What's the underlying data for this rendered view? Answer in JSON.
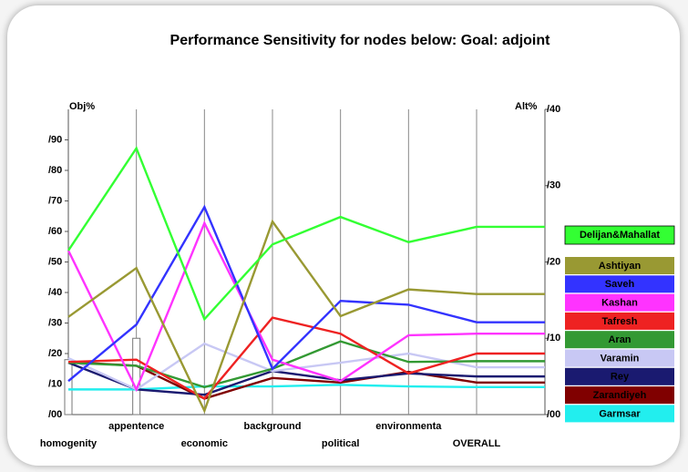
{
  "chart_data": {
    "type": "line",
    "title": "Performance Sensitivity for nodes below: Goal: adjoint",
    "ylabel": "Obj%",
    "y2label": "Alt%",
    "categories": [
      "homogenity",
      "appentence",
      "economic",
      "background",
      "political",
      "environmenta",
      "OVERALL"
    ],
    "ylim": [
      0,
      100
    ],
    "yticks": [
      {
        "value": 0,
        "label": "/00"
      },
      {
        "value": 10,
        "label": "/10"
      },
      {
        "value": 20,
        "label": "/20"
      },
      {
        "value": 30,
        "label": "/30"
      },
      {
        "value": 40,
        "label": "/40"
      },
      {
        "value": 50,
        "label": "/50"
      },
      {
        "value": 60,
        "label": "/60"
      },
      {
        "value": 70,
        "label": "/70"
      },
      {
        "value": 80,
        "label": "/80"
      },
      {
        "value": 90,
        "label": "/90"
      }
    ],
    "y2lim": [
      0,
      40
    ],
    "y2ticks": [
      {
        "value": 0,
        "label": "/00"
      },
      {
        "value": 10,
        "label": "/10"
      },
      {
        "value": 20,
        "label": "/20"
      },
      {
        "value": 30,
        "label": "/30"
      },
      {
        "value": 40,
        "label": "/40"
      }
    ],
    "bar_values": [
      18,
      25,
      null,
      null,
      null,
      null,
      null
    ],
    "series": [
      {
        "name": "Delijan&Mahallat",
        "color": "#33ff33",
        "axis": "y2",
        "values": [
          21.5,
          34.9,
          12.5,
          22.3,
          25.9,
          22.6,
          24.6
        ]
      },
      {
        "name": "Ashtiyan",
        "color": "#999933",
        "axis": "y2",
        "values": [
          12.8,
          19.2,
          0.5,
          25.3,
          12.9,
          16.4,
          15.8
        ]
      },
      {
        "name": "Saveh",
        "color": "#3333ff",
        "axis": "y2",
        "values": [
          4.4,
          11.8,
          27.2,
          6.0,
          14.9,
          14.4,
          12.1
        ]
      },
      {
        "name": "Kashan",
        "color": "#ff33ff",
        "axis": "y2",
        "values": [
          21.5,
          3.3,
          25.1,
          7.2,
          4.4,
          10.4,
          10.6
        ]
      },
      {
        "name": "Tafresh",
        "color": "#ee2222",
        "axis": "y2",
        "values": [
          6.9,
          7.2,
          2.1,
          12.7,
          10.6,
          5.4,
          8.0
        ]
      },
      {
        "name": "Aran",
        "color": "#339933",
        "axis": "y2",
        "values": [
          6.8,
          6.4,
          3.6,
          6.0,
          9.6,
          6.9,
          7.0
        ]
      },
      {
        "name": "Varamin",
        "color": "#c8c8f4",
        "axis": "y2",
        "values": [
          7.4,
          3.3,
          9.3,
          5.7,
          6.8,
          8.0,
          6.2
        ]
      },
      {
        "name": "Rey",
        "color": "#1a1a70",
        "axis": "y2",
        "values": [
          6.8,
          3.3,
          2.6,
          5.7,
          4.5,
          5.4,
          5.0
        ]
      },
      {
        "name": "Zarandiyeh",
        "color": "#800000",
        "axis": "y2",
        "values": [
          6.9,
          6.4,
          2.1,
          4.8,
          4.2,
          5.6,
          4.2
        ]
      },
      {
        "name": "Garmsar",
        "color": "#22eeee",
        "axis": "y2",
        "values": [
          3.3,
          3.3,
          3.7,
          3.7,
          3.9,
          3.7,
          3.6
        ]
      }
    ]
  }
}
